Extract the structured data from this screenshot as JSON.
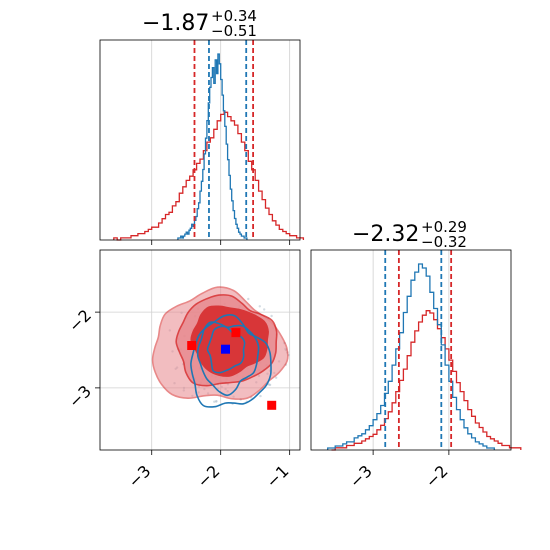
{
  "chart_data": {
    "type": "corner",
    "colors": {
      "blue": "#1f77b4",
      "red": "#d62728",
      "red_light": "#e8888d",
      "marker_red": "#ff0000",
      "marker_blue": "#0000ff"
    },
    "grid": true,
    "params": [
      {
        "range": [
          -3.75,
          -0.85
        ],
        "ticks": [
          -3,
          -2,
          -1
        ],
        "tick_labels": [
          "−3",
          "−2",
          "−1"
        ]
      },
      {
        "range": [
          -3.82,
          -1.18
        ],
        "ticks": [
          -3,
          -2
        ],
        "tick_labels": [
          "−3",
          "−2"
        ]
      }
    ],
    "titles": [
      {
        "value": "−1.87",
        "plus": "+0.34",
        "minus": "−0.51"
      },
      {
        "value": "−2.32",
        "plus": "+0.29",
        "minus": "−0.32"
      }
    ],
    "hist1": {
      "blue_quantiles": [
        -2.17,
        -1.63
      ],
      "red_quantiles": [
        -2.38,
        -1.53
      ],
      "blue_bins": {
        "start": -2.62,
        "width": 0.02,
        "counts": [
          1,
          1,
          2,
          1,
          2,
          3,
          4,
          3,
          5,
          6,
          8,
          7,
          10,
          12,
          16,
          19,
          25,
          30,
          36,
          44,
          52,
          61,
          70,
          78,
          83,
          88,
          80,
          92,
          85,
          95,
          90,
          82,
          74,
          66,
          58,
          49,
          41,
          33,
          26,
          20,
          15,
          11,
          8,
          6,
          4,
          3,
          2,
          2,
          1,
          1
        ]
      },
      "red_bins": {
        "start": -3.55,
        "width": 0.05,
        "counts": [
          1,
          0,
          1,
          1,
          1,
          2,
          2,
          3,
          3,
          4,
          5,
          6,
          6,
          8,
          10,
          12,
          13,
          16,
          18,
          22,
          25,
          28,
          30,
          33,
          36,
          38,
          42,
          46,
          48,
          52,
          56,
          59,
          60,
          58,
          56,
          54,
          50,
          46,
          42,
          37,
          33,
          28,
          23,
          19,
          15,
          12,
          9,
          7,
          5,
          4,
          3,
          2,
          2,
          1,
          1
        ]
      }
    },
    "hist2": {
      "blue_quantiles": [
        -2.84,
        -2.1
      ],
      "red_quantiles": [
        -2.66,
        -1.97
      ],
      "blue_bins": {
        "start": -3.6,
        "width": 0.05,
        "counts": [
          1,
          1,
          2,
          2,
          3,
          4,
          4,
          6,
          7,
          8,
          10,
          12,
          15,
          18,
          22,
          28,
          34,
          42,
          50,
          58,
          68,
          76,
          84,
          88,
          92,
          90,
          86,
          78,
          70,
          62,
          52,
          42,
          34,
          26,
          20,
          15,
          11,
          8,
          6,
          4,
          3,
          2,
          1,
          1
        ]
      },
      "red_bins": {
        "start": -3.55,
        "width": 0.05,
        "counts": [
          0,
          1,
          1,
          1,
          2,
          2,
          3,
          3,
          4,
          5,
          6,
          7,
          9,
          11,
          14,
          17,
          21,
          26,
          31,
          36,
          42,
          48,
          53,
          57,
          60,
          62,
          61,
          58,
          54,
          50,
          45,
          40,
          35,
          30,
          26,
          22,
          18,
          15,
          12,
          10,
          8,
          6,
          5,
          4,
          3,
          2,
          2,
          1,
          1,
          1
        ]
      }
    },
    "markers": [
      {
        "x": -1.78,
        "y": -2.27,
        "color": "red"
      },
      {
        "x": -2.42,
        "y": -2.44,
        "color": "red"
      },
      {
        "x": -1.26,
        "y": -3.23,
        "color": "red"
      },
      {
        "x": -1.93,
        "y": -2.49,
        "color": "blue"
      }
    ]
  }
}
